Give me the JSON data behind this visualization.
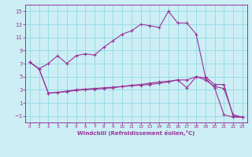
{
  "background_color": "#cceef4",
  "grid_color": "#99dde8",
  "line_color": "#993399",
  "xlim": [
    -0.5,
    23.5
  ],
  "ylim": [
    -2,
    16
  ],
  "xticks": [
    0,
    1,
    2,
    3,
    4,
    5,
    6,
    7,
    8,
    9,
    10,
    11,
    12,
    13,
    14,
    15,
    16,
    17,
    18,
    19,
    20,
    21,
    22,
    23
  ],
  "yticks": [
    -1,
    1,
    3,
    5,
    7,
    9,
    11,
    13,
    15
  ],
  "xlabel": "Windchill (Refroidissement éolien,°C)",
  "line1_x": [
    0,
    1,
    2,
    3,
    4,
    5,
    6,
    7,
    8,
    9,
    10,
    11,
    12,
    13,
    14,
    15,
    16,
    17,
    18,
    19,
    20,
    21,
    22,
    23
  ],
  "line1_y": [
    7.2,
    6.2,
    7.0,
    8.2,
    7.0,
    8.2,
    8.5,
    8.3,
    9.5,
    10.5,
    11.5,
    12.0,
    13.0,
    12.8,
    12.5,
    15.0,
    13.2,
    13.2,
    11.5,
    5.0,
    3.8,
    3.8,
    -1.0,
    -1.2
  ],
  "line2_x": [
    0,
    1,
    2,
    3,
    4,
    5,
    6,
    7,
    8,
    9,
    10,
    11,
    12,
    13,
    14,
    15,
    16,
    17,
    18,
    19,
    20,
    21,
    22,
    23
  ],
  "line2_y": [
    7.2,
    6.2,
    2.5,
    2.6,
    2.7,
    2.9,
    3.0,
    3.1,
    3.2,
    3.3,
    3.5,
    3.6,
    3.7,
    3.8,
    4.0,
    4.2,
    4.5,
    3.3,
    5.0,
    4.8,
    3.3,
    -0.8,
    -1.2,
    -1.2
  ],
  "line3_x": [
    0,
    1,
    2,
    3,
    4,
    5,
    6,
    7,
    8,
    9,
    10,
    11,
    12,
    13,
    14,
    15,
    16,
    17,
    18,
    19,
    20,
    21,
    22,
    23
  ],
  "line3_y": [
    7.2,
    6.2,
    2.5,
    2.6,
    2.8,
    3.0,
    3.1,
    3.2,
    3.3,
    3.4,
    3.5,
    3.7,
    3.8,
    4.0,
    4.2,
    4.3,
    4.5,
    4.5,
    5.0,
    4.5,
    3.5,
    3.2,
    -0.8,
    -1.2
  ]
}
